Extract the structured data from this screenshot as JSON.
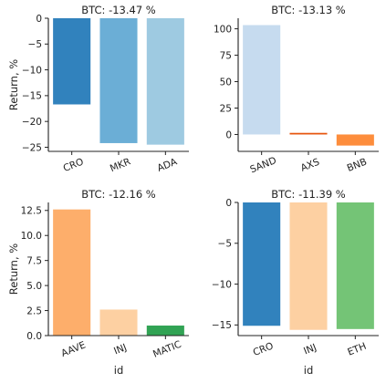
{
  "chart_data": [
    {
      "type": "bar",
      "title": "BTC: -13.47 %",
      "xlabel": "",
      "ylabel": "Return, %",
      "categories": [
        "CRO",
        "MKR",
        "ADA"
      ],
      "values": [
        -16.7,
        -24.2,
        -24.5
      ],
      "colors": [
        "#3182bd",
        "#6baed6",
        "#9ecae1"
      ],
      "ylim": [
        -25.8,
        0
      ],
      "yticks": [
        0,
        -5,
        -10,
        -15,
        -20,
        -25
      ],
      "ytick_labels": [
        "0",
        "−5",
        "−10",
        "−15",
        "−20",
        "−25"
      ]
    },
    {
      "type": "bar",
      "title": "BTC: -13.13 %",
      "xlabel": "",
      "ylabel": "",
      "categories": [
        "SAND",
        "AXS",
        "BNB"
      ],
      "values": [
        103.5,
        1.5,
        -10.5
      ],
      "colors": [
        "#c6dbef",
        "#e6550d",
        "#fd8d3c"
      ],
      "ylim": [
        -16,
        110
      ],
      "yticks": [
        0,
        25,
        50,
        75,
        100
      ],
      "ytick_labels": [
        "0",
        "25",
        "50",
        "75",
        "100"
      ]
    },
    {
      "type": "bar",
      "title": "BTC: -12.16 %",
      "xlabel": "id",
      "ylabel": "Return, %",
      "categories": [
        "AAVE",
        "INJ",
        "MATIC"
      ],
      "values": [
        12.6,
        2.6,
        1.0
      ],
      "colors": [
        "#fdae6b",
        "#fdd0a2",
        "#31a354"
      ],
      "ylim": [
        0,
        13.3
      ],
      "yticks": [
        0,
        2.5,
        5,
        7.5,
        10,
        12.5
      ],
      "ytick_labels": [
        "0.0",
        "2.5",
        "5.0",
        "7.5",
        "10.0",
        "12.5"
      ]
    },
    {
      "type": "bar",
      "title": "BTC: -11.39 %",
      "xlabel": "id",
      "ylabel": "",
      "categories": [
        "CRO",
        "INJ",
        "ETH"
      ],
      "values": [
        -15.1,
        -15.6,
        -15.5
      ],
      "colors": [
        "#3182bd",
        "#fdd0a2",
        "#74c476"
      ],
      "ylim": [
        -16.3,
        0
      ],
      "yticks": [
        0,
        -5,
        -10,
        -15
      ],
      "ytick_labels": [
        "0",
        "−5",
        "−10",
        "−15"
      ]
    }
  ]
}
